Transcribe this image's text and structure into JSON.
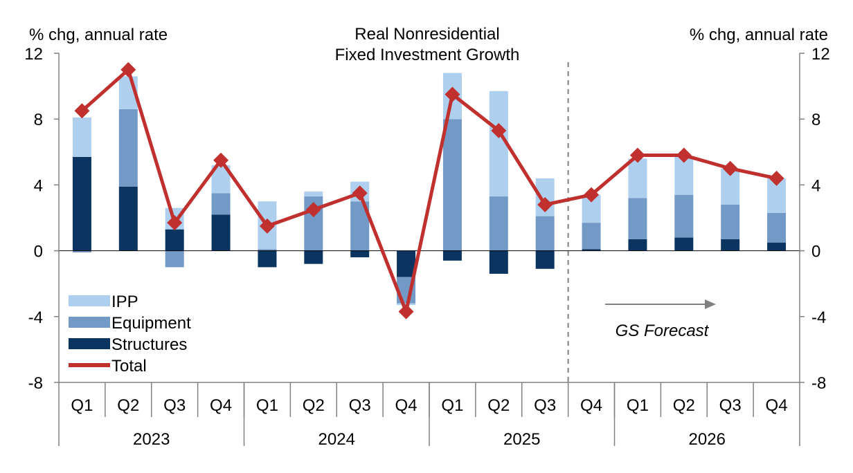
{
  "chart_data": {
    "type": "bar",
    "title": "Real Nonresidential Fixed Investment Growth",
    "title_lines": [
      "Real Nonresidential",
      "Fixed Investment Growth"
    ],
    "ylabel_left": "% chg, annual rate",
    "ylabel_right": "% chg, annual rate",
    "ylim": [
      -8,
      12
    ],
    "yticks": [
      -8,
      -4,
      0,
      4,
      8,
      12
    ],
    "stacked": true,
    "categories": [
      "Q1",
      "Q2",
      "Q3",
      "Q4",
      "Q1",
      "Q2",
      "Q3",
      "Q4",
      "Q1",
      "Q2",
      "Q3",
      "Q4",
      "Q1",
      "Q2",
      "Q3",
      "Q4"
    ],
    "years": [
      {
        "label": "2023",
        "span": 4
      },
      {
        "label": "2024",
        "span": 4
      },
      {
        "label": "2025",
        "span": 4
      },
      {
        "label": "2026",
        "span": 4
      }
    ],
    "series": [
      {
        "name": "Structures",
        "kind": "bar",
        "color": "#0b3560",
        "values": [
          5.7,
          3.9,
          1.3,
          2.2,
          -1.0,
          -0.8,
          -0.4,
          -1.6,
          -0.6,
          -1.4,
          -1.1,
          0.1,
          0.7,
          0.8,
          0.7,
          0.5
        ]
      },
      {
        "name": "Equipment",
        "kind": "bar",
        "color": "#7399c6",
        "values": [
          -0.1,
          4.7,
          -1.0,
          1.3,
          0.1,
          3.3,
          3.0,
          -1.6,
          8.0,
          3.3,
          2.1,
          1.6,
          2.5,
          2.6,
          2.1,
          1.8
        ]
      },
      {
        "name": "IPP",
        "kind": "bar",
        "color": "#aed0ee",
        "values": [
          2.4,
          2.0,
          1.3,
          1.7,
          2.9,
          0.3,
          1.2,
          -0.1,
          2.8,
          6.4,
          2.3,
          1.7,
          2.4,
          2.3,
          2.2,
          2.1
        ]
      },
      {
        "name": "Total",
        "kind": "line",
        "color": "#c0302e",
        "values": [
          8.5,
          11.0,
          1.7,
          5.5,
          1.5,
          2.5,
          3.5,
          -3.7,
          9.5,
          7.3,
          2.8,
          3.4,
          5.8,
          5.8,
          5.0,
          4.4
        ]
      }
    ],
    "legend": [
      "IPP",
      "Equipment",
      "Structures",
      "Total"
    ],
    "legend_position": "bottom-left",
    "forecast_start_index": 11,
    "annotation": "GS Forecast",
    "grid": false
  }
}
